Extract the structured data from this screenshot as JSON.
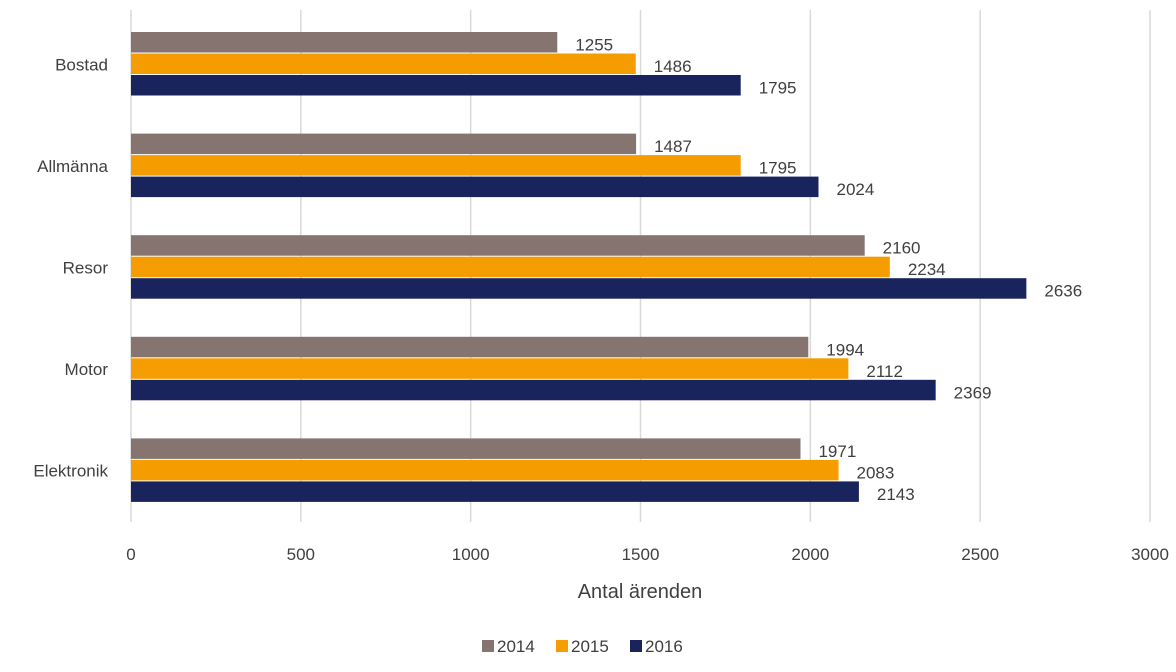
{
  "chart_data": {
    "type": "bar",
    "orientation": "horizontal",
    "categories": [
      "Bostad",
      "Allmänna",
      "Resor",
      "Motor",
      "Elektronik"
    ],
    "series": [
      {
        "name": "2014",
        "color": "#857470",
        "values": [
          1255,
          1487,
          2160,
          1994,
          1971
        ]
      },
      {
        "name": "2015",
        "color": "#f59d00",
        "values": [
          1486,
          1795,
          2234,
          2112,
          2083
        ]
      },
      {
        "name": "2016",
        "color": "#1a245c",
        "values": [
          1795,
          2024,
          2636,
          2369,
          2143
        ]
      }
    ],
    "xlabel": "Antal ärenden",
    "xlim": [
      0,
      3000
    ],
    "xticks": [
      0,
      500,
      1000,
      1500,
      2000,
      2500,
      3000
    ],
    "grid": "vertical",
    "data_labels": true,
    "legend_position": "bottom"
  }
}
